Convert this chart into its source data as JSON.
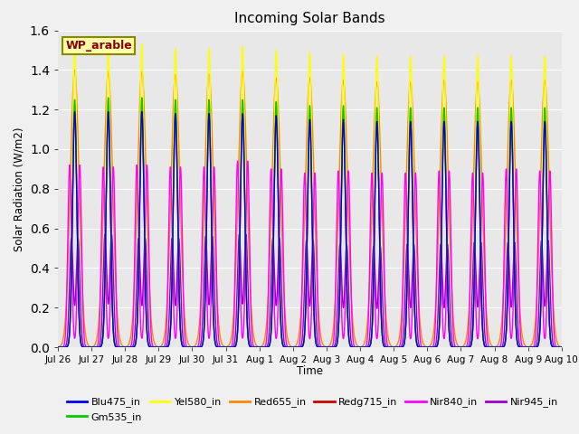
{
  "title": "Incoming Solar Bands",
  "xlabel": "Time",
  "ylabel": "Solar Radiation (W/m2)",
  "site_label": "WP_arable",
  "ylim": [
    0.0,
    1.6
  ],
  "fig_bg_color": "#f0f0f0",
  "ax_bg_color": "#e8e8e8",
  "legend_entries": [
    {
      "label": "Blu475_in",
      "color": "#0000ee"
    },
    {
      "label": "Gm535_in",
      "color": "#00cc00"
    },
    {
      "label": "Yel580_in",
      "color": "#ffff00"
    },
    {
      "label": "Red655_in",
      "color": "#ff8800"
    },
    {
      "label": "Redg715_in",
      "color": "#cc0000"
    },
    {
      "label": "Nir840_in",
      "color": "#ff00ff"
    },
    {
      "label": "Nir945_in",
      "color": "#9900cc"
    }
  ],
  "n_days": 15,
  "ppd": 500,
  "peak_heights_yel": [
    1.53,
    1.51,
    1.53,
    1.51,
    1.51,
    1.52,
    1.5,
    1.49,
    1.48,
    1.47,
    1.47,
    1.47,
    1.47,
    1.47,
    1.47
  ],
  "peak_heights_red655": [
    1.4,
    1.39,
    1.39,
    1.38,
    1.38,
    1.39,
    1.36,
    1.36,
    1.35,
    1.34,
    1.34,
    1.35,
    1.34,
    1.35,
    1.35
  ],
  "peak_heights_redg": [
    1.19,
    1.18,
    1.19,
    1.18,
    1.18,
    1.18,
    1.16,
    1.14,
    1.14,
    1.13,
    1.14,
    1.14,
    1.13,
    1.14,
    1.14
  ],
  "peak_heights_grn": [
    1.25,
    1.26,
    1.26,
    1.25,
    1.25,
    1.25,
    1.24,
    1.22,
    1.22,
    1.21,
    1.21,
    1.21,
    1.21,
    1.21,
    1.21
  ],
  "peak_heights_blu": [
    1.19,
    1.19,
    1.19,
    1.18,
    1.18,
    1.18,
    1.17,
    1.15,
    1.15,
    1.14,
    1.14,
    1.14,
    1.14,
    1.14,
    1.14
  ],
  "peak_heights_nir840": [
    0.92,
    0.91,
    0.92,
    0.91,
    0.91,
    0.94,
    0.9,
    0.88,
    0.89,
    0.88,
    0.88,
    0.89,
    0.88,
    0.9,
    0.89
  ],
  "peak_heights_nir945": [
    0.55,
    0.57,
    0.55,
    0.55,
    0.56,
    0.57,
    0.55,
    0.54,
    0.52,
    0.51,
    0.52,
    0.52,
    0.53,
    0.53,
    0.54
  ],
  "tick_labels": [
    "Jul 26",
    "Jul 27",
    "Jul 28",
    "Jul 29",
    "Jul 30",
    "Jul 31",
    "Aug 1",
    "Aug 2",
    "Aug 3",
    "Aug 4",
    "Aug 5",
    "Aug 6",
    "Aug 7",
    "Aug 8",
    "Aug 9",
    "Aug 10"
  ],
  "sigma_narrow": 0.065,
  "sigma_wide": 0.13,
  "nir840_dip": 0.15,
  "nir945_dip": 0.1
}
